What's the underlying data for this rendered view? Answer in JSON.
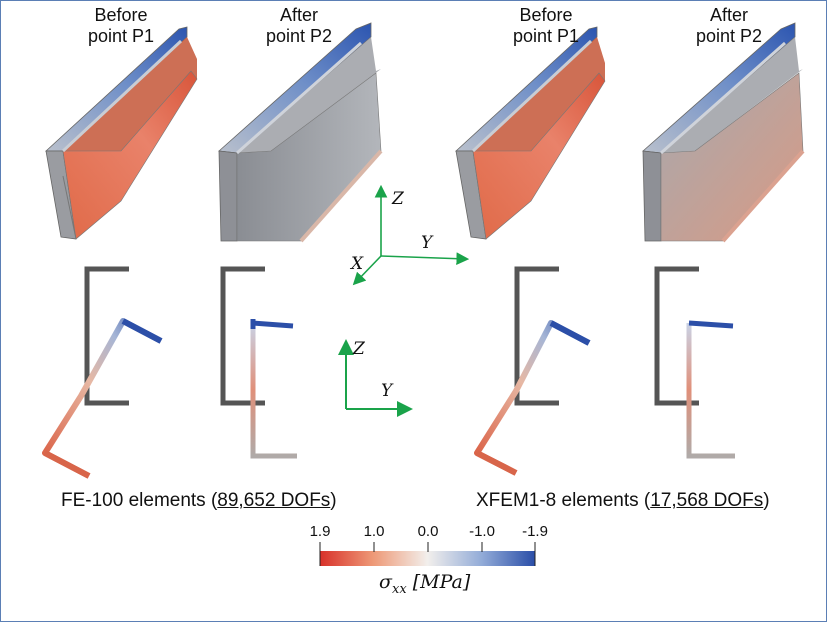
{
  "panels": [
    {
      "line1": "Before",
      "line2": "point P1"
    },
    {
      "line1": "After",
      "line2": "point P2"
    },
    {
      "line1": "Before",
      "line2": "point P1"
    },
    {
      "line1": "After",
      "line2": "point P2"
    }
  ],
  "captions": {
    "left_prefix": "FE-100 elements (",
    "left_dofs": "89,652 DOFs",
    "left_suffix": ")",
    "right_prefix": "XFEM1-8 elements (",
    "right_dofs": "17,568 DOFs",
    "right_suffix": ")"
  },
  "axes3d": {
    "z": "Z",
    "y": "Y",
    "x": "X"
  },
  "axes2d": {
    "z": "Z",
    "y": "Y"
  },
  "colorbar": {
    "ticks": [
      "1.9",
      "1.0",
      "0.0",
      "-1.0",
      "-1.9"
    ],
    "title_sigma": "σ",
    "title_sub": "xx",
    "title_unit": "[MPa]",
    "colors": {
      "low": "#d93a2b",
      "mid": "#f2eeea",
      "high": "#2b50a8"
    }
  },
  "colors": {
    "axis_green": "#1aa34a",
    "frame": "#555555"
  }
}
